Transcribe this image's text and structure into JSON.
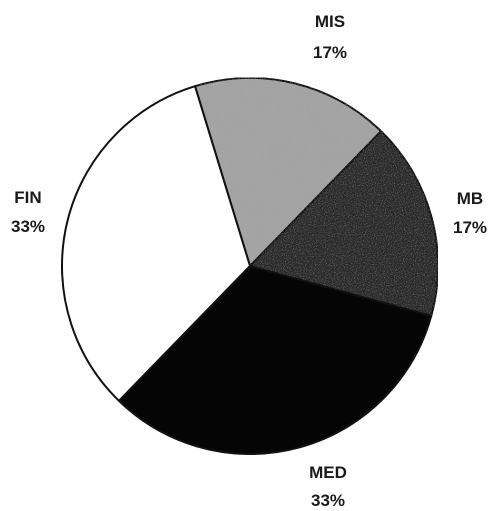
{
  "chart_data": {
    "type": "pie",
    "start_angle_deg": -107,
    "direction": "clockwise",
    "slices": [
      {
        "label": "MIS",
        "percent_label": "17%",
        "value": 17,
        "color": "#a3a3a3"
      },
      {
        "label": "MB",
        "percent_label": "17%",
        "value": 17,
        "color": "#2b2b2b"
      },
      {
        "label": "MED",
        "percent_label": "33%",
        "value": 33,
        "color": "#050505"
      },
      {
        "label": "FIN",
        "percent_label": "33%",
        "value": 33,
        "color": "#ffffff"
      }
    ]
  }
}
